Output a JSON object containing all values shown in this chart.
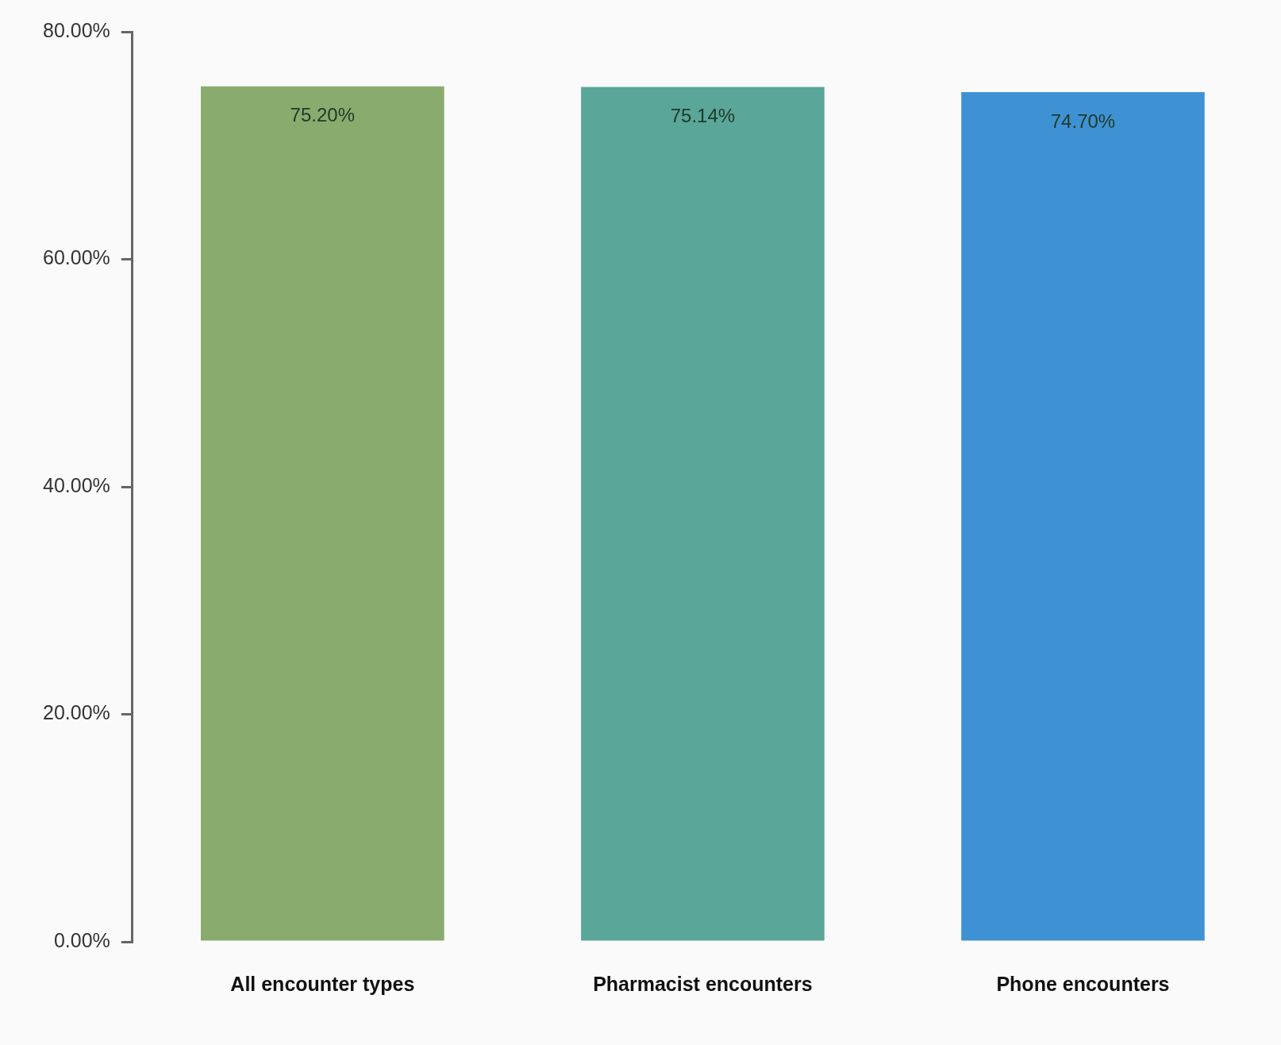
{
  "chart_data": {
    "type": "bar",
    "categories": [
      "All encounter types",
      "Pharmacist encounters",
      "Phone encounters"
    ],
    "values": [
      75.2,
      75.14,
      74.7
    ],
    "colors": [
      "#8aab6e",
      "#5aa698",
      "#3e92d4"
    ],
    "value_labels": [
      "75.20%",
      "75.14%",
      "74.70%"
    ],
    "ylim": [
      0,
      80
    ],
    "yticks": [
      {
        "value": 0,
        "label": "0.00%"
      },
      {
        "value": 20,
        "label": "20.00%"
      },
      {
        "value": 40,
        "label": "40.00%"
      },
      {
        "value": 60,
        "label": "60.00%"
      },
      {
        "value": 80,
        "label": "80.00%"
      }
    ],
    "grid": false,
    "legend": false
  }
}
